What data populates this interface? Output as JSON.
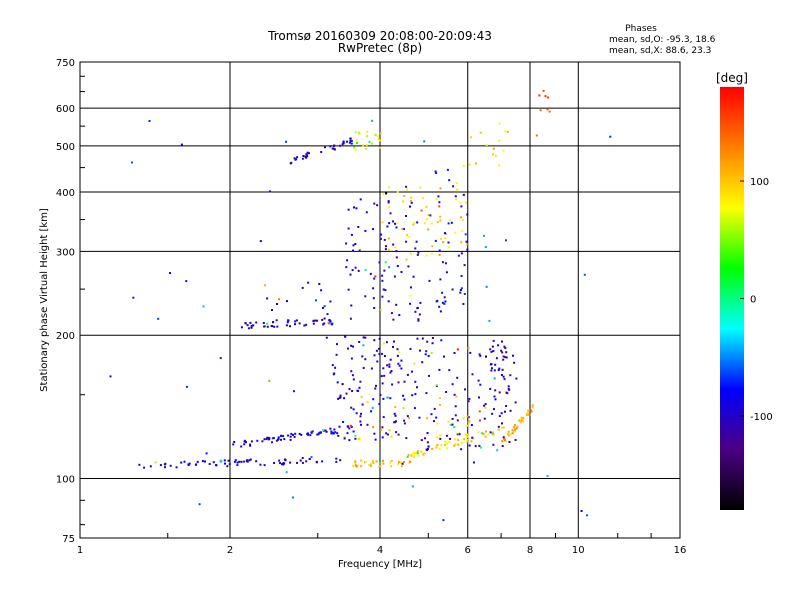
{
  "chart_data": {
    "type": "scatter",
    "title": "Tromsø 20160309 20:08:00-20:09:43",
    "subtitle": "RwPretec (8p)",
    "xlabel": "Frequency [MHz]",
    "ylabel": "Stationary phase Virtual Height [km]",
    "x_scale": "log2",
    "y_scale": "log",
    "xlim": [
      1,
      16
    ],
    "ylim": [
      75,
      750
    ],
    "x_ticks": [
      1,
      2,
      4,
      6,
      8,
      10,
      16
    ],
    "x_tick_labels": [
      "1",
      "2",
      "4",
      "6",
      "8",
      "10",
      "16"
    ],
    "y_ticks": [
      75,
      100,
      200,
      300,
      400,
      500,
      600,
      750
    ],
    "y_tick_labels": [
      "75",
      "100",
      "200",
      "300",
      "400",
      "500",
      "600",
      "750"
    ],
    "grid": true,
    "legend": {
      "title": "Phases",
      "lines": [
        "mean, sd,O: -95.3, 18.6",
        "mean, sd,X: 88.6, 23.3"
      ],
      "placement": "top-right"
    },
    "colorbar": {
      "label": "[deg]",
      "range": [
        -180,
        180
      ],
      "ticks": [
        100,
        0,
        -100
      ],
      "tick_labels": [
        "100",
        "0",
        "-100"
      ],
      "stops": [
        "#000000",
        "#4b0082",
        "#0000ff",
        "#00ffff",
        "#00ff00",
        "#ffff00",
        "#ff7f00",
        "#ff0000"
      ]
    },
    "clusters": [
      {
        "kind": "trace",
        "from": [
          1.3,
          107
        ],
        "to": [
          3.4,
          110
        ],
        "phase": -100,
        "n": 70
      },
      {
        "kind": "trace",
        "from": [
          3.5,
          108
        ],
        "to": [
          4.6,
          108
        ],
        "phase": 105,
        "n": 35
      },
      {
        "kind": "trace",
        "from": [
          2.0,
          118
        ],
        "to": [
          3.5,
          128
        ],
        "phase": -92,
        "n": 70
      },
      {
        "kind": "trace",
        "from": [
          4.5,
          112
        ],
        "to": [
          7.2,
          128
        ],
        "phase": 95,
        "n": 55
      },
      {
        "kind": "trace",
        "from": [
          7.0,
          120
        ],
        "to": [
          8.1,
          142
        ],
        "phase": 110,
        "n": 35
      },
      {
        "kind": "blob",
        "x": [
          3.2,
          4.3
        ],
        "y": [
          120,
          200
        ],
        "phase": -98,
        "n": 90
      },
      {
        "kind": "blob",
        "x": [
          4.0,
          7.5
        ],
        "y": [
          115,
          200
        ],
        "phase": -100,
        "n": 140
      },
      {
        "kind": "blob",
        "x": [
          3.6,
          6.5
        ],
        "y": [
          120,
          150
        ],
        "phase": 85,
        "n": 35
      },
      {
        "kind": "blob",
        "x": [
          6.6,
          7.2
        ],
        "y": [
          135,
          195
        ],
        "phase": -100,
        "n": 25
      },
      {
        "kind": "trace",
        "from": [
          2.1,
          210
        ],
        "to": [
          3.2,
          215
        ],
        "phase": -100,
        "n": 45
      },
      {
        "kind": "blob",
        "x": [
          2.2,
          3.2
        ],
        "y": [
          210,
          260
        ],
        "phase": -98,
        "n": 20
      },
      {
        "kind": "blob",
        "x": [
          3.4,
          4.8
        ],
        "y": [
          215,
          390
        ],
        "phase": -100,
        "n": 90
      },
      {
        "kind": "blob",
        "x": [
          4.0,
          6.0
        ],
        "y": [
          290,
          420
        ],
        "phase": 95,
        "n": 60
      },
      {
        "kind": "blob",
        "x": [
          5.0,
          6.0
        ],
        "y": [
          225,
          460
        ],
        "phase": -90,
        "n": 45
      },
      {
        "kind": "trace",
        "from": [
          2.6,
          465
        ],
        "to": [
          3.5,
          515
        ],
        "phase": -100,
        "n": 35
      },
      {
        "kind": "blob",
        "x": [
          3.5,
          4.0
        ],
        "y": [
          490,
          540
        ],
        "phase": 70,
        "n": 20
      },
      {
        "kind": "blob",
        "x": [
          5.8,
          7.2
        ],
        "y": [
          450,
          560
        ],
        "phase": 95,
        "n": 15
      },
      {
        "kind": "blob",
        "x": [
          8.2,
          8.8
        ],
        "y": [
          480,
          660
        ],
        "phase": 150,
        "n": 8
      },
      {
        "kind": "blob",
        "x": [
          1.1,
          12.2
        ],
        "y": [
          78,
          600
        ],
        "phase": -60,
        "n": 45
      }
    ]
  }
}
